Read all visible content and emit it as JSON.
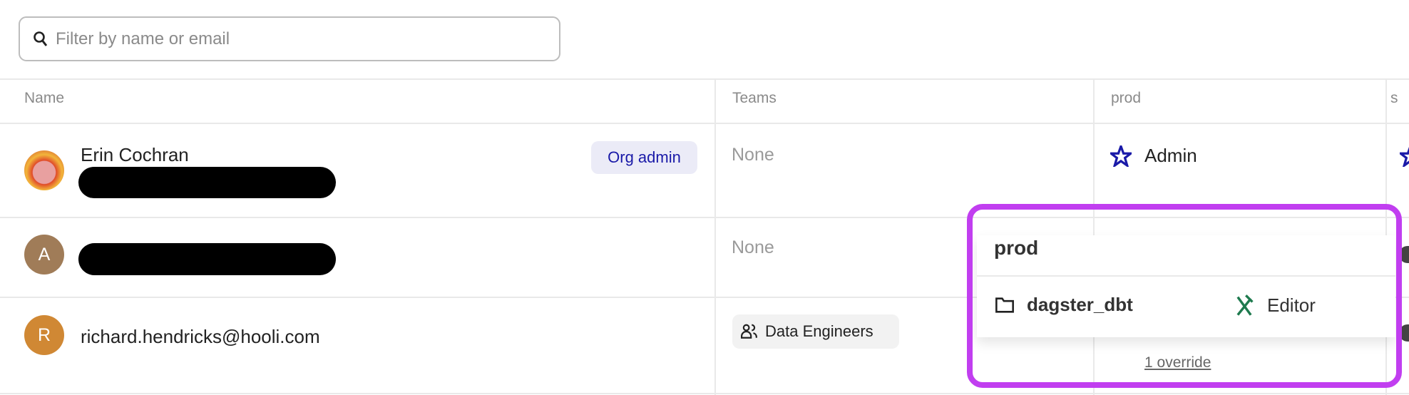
{
  "search": {
    "placeholder": "Filter by name or email",
    "icon": "search-icon"
  },
  "columns": [
    "Name",
    "Teams",
    "prod",
    "s"
  ],
  "rows": [
    {
      "name": "Erin Cochran",
      "email_redacted": true,
      "badge": "Org admin",
      "teams": "None",
      "prod_role": "Admin",
      "avatar": "photo"
    },
    {
      "initial": "A",
      "avatar_color": "#a07c58",
      "email_redacted": true,
      "teams": "None"
    },
    {
      "initial": "R",
      "avatar_color": "#d08834",
      "email": "richard.hendricks@hooli.com",
      "team": "Data Engineers",
      "override": "1 override"
    }
  ],
  "popover": {
    "title": "prod",
    "location": "dagster_dbt",
    "role": "Editor",
    "role_color": "#1e7a4e",
    "highlight_color": "#c13ef0"
  },
  "colors": {
    "admin_star": "#1a1aa8",
    "badge_text": "#1a1aa8"
  }
}
